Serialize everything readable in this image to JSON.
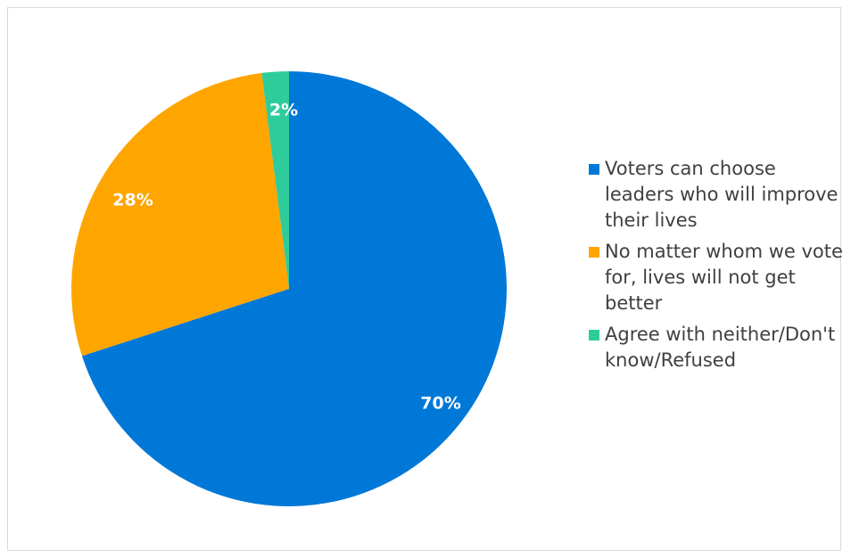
{
  "chart_data": {
    "type": "pie",
    "categories": [
      "Voters can choose leaders who will improve their lives",
      "No matter whom we vote for, lives will not get better",
      "Agree with neither/Don't know/Refused"
    ],
    "values": [
      70,
      28,
      2
    ],
    "labels": [
      "70%",
      "28%",
      "2%"
    ],
    "colors": [
      "#0078d7",
      "#ffa500",
      "#2ecc9a"
    ],
    "legend_position": "right",
    "title": ""
  }
}
